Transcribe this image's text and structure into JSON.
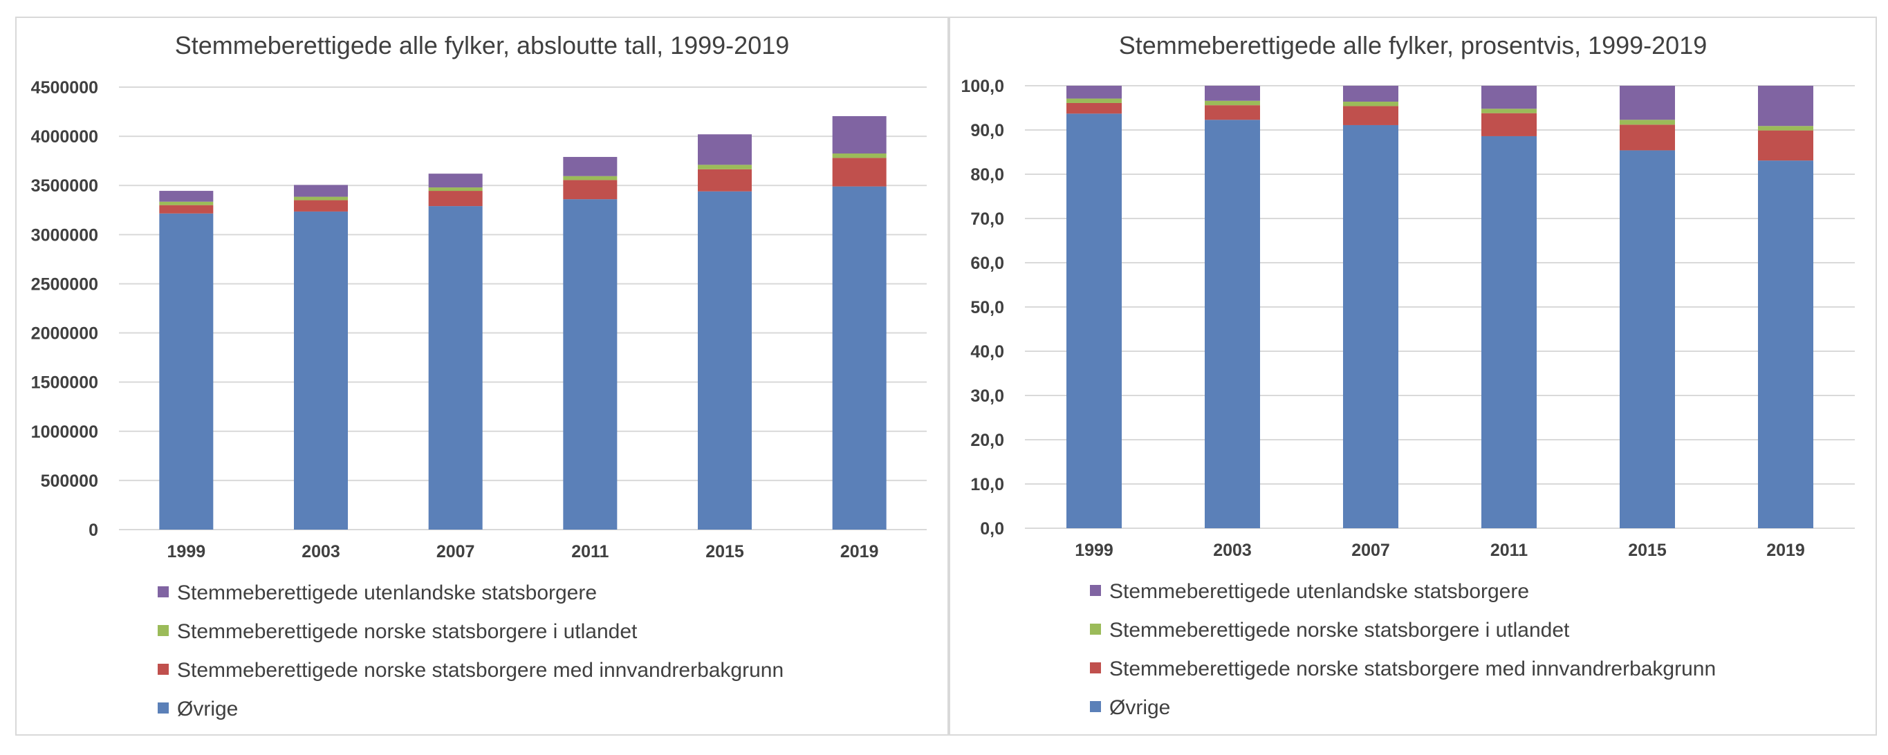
{
  "chart_data": [
    {
      "type": "bar",
      "stacked": true,
      "title": "Stemmeberettigede alle fylker, absloutte tall, 1999-2019",
      "xlabel": "",
      "ylabel": "",
      "ylim": [
        0,
        4500000
      ],
      "yticks": [
        0,
        500000,
        1000000,
        1500000,
        2000000,
        2500000,
        3000000,
        3500000,
        4000000,
        4500000
      ],
      "ytick_labels": [
        "0",
        "500000",
        "1000000",
        "1500000",
        "2000000",
        "2500000",
        "3000000",
        "3500000",
        "4000000",
        "4500000"
      ],
      "grid": true,
      "legend_position": "bottom",
      "categories": [
        "1999",
        "2003",
        "2007",
        "2011",
        "2015",
        "2019"
      ],
      "series": [
        {
          "name": "Øvrige",
          "color": "#5b80b8",
          "values": [
            3215000,
            3235000,
            3290000,
            3360000,
            3440000,
            3490000
          ]
        },
        {
          "name": "Stemmeberettigede norske statsborgere med innvandrerbakgrunn",
          "color": "#c0504d",
          "values": [
            85000,
            115000,
            155000,
            195000,
            225000,
            290000
          ]
        },
        {
          "name": "Stemmeberettigede norske statsborgere i utlandet",
          "color": "#9bbb59",
          "values": [
            35000,
            35000,
            35000,
            40000,
            45000,
            45000
          ]
        },
        {
          "name": "Stemmeberettigede utenlandske statsborgere",
          "color": "#8064a2",
          "values": [
            110000,
            120000,
            140000,
            195000,
            310000,
            380000
          ]
        }
      ]
    },
    {
      "type": "bar",
      "stacked": true,
      "title": "Stemmeberettigede alle fylker, prosentvis, 1999-2019",
      "xlabel": "",
      "ylabel": "",
      "ylim": [
        0,
        100
      ],
      "yticks": [
        0,
        10,
        20,
        30,
        40,
        50,
        60,
        70,
        80,
        90,
        100
      ],
      "ytick_labels": [
        "0,0",
        "10,0",
        "20,0",
        "30,0",
        "40,0",
        "50,0",
        "60,0",
        "70,0",
        "80,0",
        "90,0",
        "100,0"
      ],
      "grid": true,
      "legend_position": "bottom",
      "categories": [
        "1999",
        "2003",
        "2007",
        "2011",
        "2015",
        "2019"
      ],
      "series": [
        {
          "name": "Øvrige",
          "color": "#5b80b8",
          "values": [
            93.7,
            92.3,
            91.1,
            88.6,
            85.4,
            83.1
          ]
        },
        {
          "name": "Stemmeberettigede norske statsborgere med innvandrerbakgrunn",
          "color": "#c0504d",
          "values": [
            2.4,
            3.3,
            4.3,
            5.2,
            5.8,
            6.8
          ]
        },
        {
          "name": "Stemmeberettigede norske statsborgere i utlandet",
          "color": "#9bbb59",
          "values": [
            1.0,
            1.0,
            1.0,
            1.0,
            1.1,
            1.0
          ]
        },
        {
          "name": "Stemmeberettigede utenlandske statsborgere",
          "color": "#8064a2",
          "values": [
            2.9,
            3.4,
            3.6,
            5.2,
            7.7,
            9.1
          ]
        }
      ]
    }
  ]
}
